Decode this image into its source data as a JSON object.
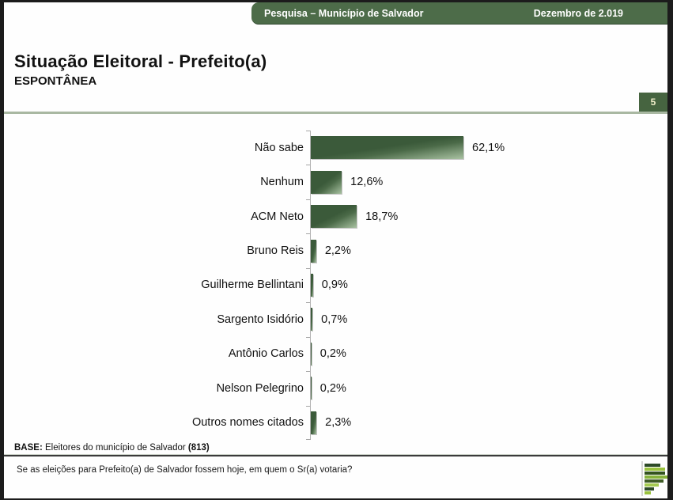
{
  "header": {
    "survey_title": "Pesquisa – Município de Salvador",
    "date": "Dezembro de 2.019"
  },
  "slide": {
    "title": "Situação Eleitoral - Prefeito(a)",
    "subtitle": "ESPONTÂNEA",
    "page_number": "5"
  },
  "chart_data": {
    "type": "bar",
    "orientation": "horizontal",
    "title": "",
    "xlabel": "",
    "ylabel": "",
    "categories": [
      "Não sabe",
      "Nenhum",
      "ACM Neto",
      "Bruno Reis",
      "Guilherme Bellintani",
      "Sargento Isidório",
      "Antônio Carlos",
      "Nelson Pelegrino",
      "Outros nomes citados"
    ],
    "values": [
      62.1,
      12.6,
      18.7,
      2.2,
      0.9,
      0.7,
      0.2,
      0.2,
      2.3
    ],
    "value_labels": [
      "62,1%",
      "12,6%",
      "18,7%",
      "2,2%",
      "0,9%",
      "0,7%",
      "0,2%",
      "0,2%",
      "2,3%"
    ],
    "value_suffix": "%",
    "xlim": [
      0,
      100
    ],
    "grid": false,
    "legend": false
  },
  "footer": {
    "base_label": "BASE:",
    "base_text": " Eleitores do município de Salvador ",
    "base_count": "(813)",
    "question": "Se as eleições para Prefeito(a) de Salvador fossem hoje, em quem o Sr(a) votaria?"
  },
  "colors": {
    "header_green": "#4d6c49",
    "page_box_green": "#466440",
    "page_number_text": "#f0eec9",
    "bar_dark_green": "#3b5a3a",
    "bar_light_green": "#a9c2a2",
    "divider_green": "#a9b8a2",
    "frame_black": "#1c1c1c"
  }
}
